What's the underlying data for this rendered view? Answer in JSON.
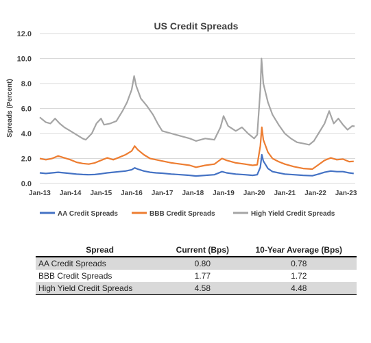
{
  "chart_data": {
    "type": "line",
    "title": "US Credit Spreads",
    "ylabel": "Spreads (Percent)",
    "xlabel": "",
    "ylim": [
      0,
      12
    ],
    "yticks": [
      "0.0",
      "2.0",
      "4.0",
      "6.0",
      "8.0",
      "10.0",
      "12.0"
    ],
    "xlim": [
      2013.0,
      2023.3
    ],
    "xticks": [
      "Jan-13",
      "Jan-14",
      "Jan-15",
      "Jan-16",
      "Jan-17",
      "Jan-18",
      "Jan-19",
      "Jan-20",
      "Jan-21",
      "Jan-22",
      "Jan-23"
    ],
    "grid": "horizontal",
    "legend_position": "bottom",
    "series": [
      {
        "name": "AA Credit Spreads",
        "color": "#4472c4",
        "points": [
          [
            2013.0,
            0.85
          ],
          [
            2013.2,
            0.8
          ],
          [
            2013.4,
            0.85
          ],
          [
            2013.6,
            0.9
          ],
          [
            2013.8,
            0.85
          ],
          [
            2014.0,
            0.8
          ],
          [
            2014.2,
            0.75
          ],
          [
            2014.4,
            0.72
          ],
          [
            2014.6,
            0.7
          ],
          [
            2014.8,
            0.72
          ],
          [
            2015.0,
            0.78
          ],
          [
            2015.2,
            0.85
          ],
          [
            2015.4,
            0.9
          ],
          [
            2015.6,
            0.95
          ],
          [
            2015.8,
            1.0
          ],
          [
            2016.0,
            1.1
          ],
          [
            2016.1,
            1.25
          ],
          [
            2016.2,
            1.15
          ],
          [
            2016.4,
            1.0
          ],
          [
            2016.6,
            0.9
          ],
          [
            2016.8,
            0.85
          ],
          [
            2017.0,
            0.82
          ],
          [
            2017.3,
            0.75
          ],
          [
            2017.6,
            0.7
          ],
          [
            2017.9,
            0.65
          ],
          [
            2018.1,
            0.6
          ],
          [
            2018.4,
            0.65
          ],
          [
            2018.7,
            0.7
          ],
          [
            2018.95,
            0.95
          ],
          [
            2019.1,
            0.85
          ],
          [
            2019.4,
            0.75
          ],
          [
            2019.7,
            0.7
          ],
          [
            2019.95,
            0.65
          ],
          [
            2020.1,
            0.7
          ],
          [
            2020.2,
            1.3
          ],
          [
            2020.25,
            2.3
          ],
          [
            2020.3,
            1.8
          ],
          [
            2020.45,
            1.2
          ],
          [
            2020.6,
            0.95
          ],
          [
            2020.8,
            0.85
          ],
          [
            2021.0,
            0.75
          ],
          [
            2021.3,
            0.7
          ],
          [
            2021.6,
            0.65
          ],
          [
            2021.9,
            0.62
          ],
          [
            2022.1,
            0.75
          ],
          [
            2022.3,
            0.9
          ],
          [
            2022.5,
            1.0
          ],
          [
            2022.7,
            0.95
          ],
          [
            2022.9,
            0.95
          ],
          [
            2023.1,
            0.85
          ],
          [
            2023.25,
            0.8
          ]
        ]
      },
      {
        "name": "BBB Credit Spreads",
        "color": "#ed7d31",
        "points": [
          [
            2013.0,
            2.0
          ],
          [
            2013.2,
            1.9
          ],
          [
            2013.4,
            2.0
          ],
          [
            2013.6,
            2.2
          ],
          [
            2013.8,
            2.05
          ],
          [
            2014.0,
            1.9
          ],
          [
            2014.2,
            1.7
          ],
          [
            2014.4,
            1.6
          ],
          [
            2014.6,
            1.55
          ],
          [
            2014.8,
            1.65
          ],
          [
            2015.0,
            1.85
          ],
          [
            2015.2,
            2.05
          ],
          [
            2015.4,
            1.9
          ],
          [
            2015.6,
            2.1
          ],
          [
            2015.8,
            2.3
          ],
          [
            2016.0,
            2.6
          ],
          [
            2016.1,
            3.0
          ],
          [
            2016.2,
            2.7
          ],
          [
            2016.4,
            2.3
          ],
          [
            2016.6,
            2.0
          ],
          [
            2016.8,
            1.9
          ],
          [
            2017.0,
            1.8
          ],
          [
            2017.3,
            1.65
          ],
          [
            2017.6,
            1.55
          ],
          [
            2017.9,
            1.45
          ],
          [
            2018.1,
            1.3
          ],
          [
            2018.4,
            1.45
          ],
          [
            2018.7,
            1.55
          ],
          [
            2018.95,
            2.0
          ],
          [
            2019.1,
            1.85
          ],
          [
            2019.4,
            1.65
          ],
          [
            2019.7,
            1.55
          ],
          [
            2019.95,
            1.45
          ],
          [
            2020.1,
            1.5
          ],
          [
            2020.2,
            3.0
          ],
          [
            2020.25,
            4.5
          ],
          [
            2020.3,
            3.5
          ],
          [
            2020.45,
            2.5
          ],
          [
            2020.6,
            2.0
          ],
          [
            2020.8,
            1.75
          ],
          [
            2021.0,
            1.55
          ],
          [
            2021.3,
            1.35
          ],
          [
            2021.6,
            1.2
          ],
          [
            2021.9,
            1.15
          ],
          [
            2022.1,
            1.5
          ],
          [
            2022.3,
            1.85
          ],
          [
            2022.5,
            2.05
          ],
          [
            2022.7,
            1.9
          ],
          [
            2022.9,
            1.95
          ],
          [
            2023.1,
            1.75
          ],
          [
            2023.25,
            1.77
          ]
        ]
      },
      {
        "name": "High Yield Credit Spreads",
        "color": "#a5a5a5",
        "points": [
          [
            2013.0,
            5.3
          ],
          [
            2013.2,
            4.9
          ],
          [
            2013.35,
            4.8
          ],
          [
            2013.5,
            5.2
          ],
          [
            2013.65,
            4.8
          ],
          [
            2013.8,
            4.5
          ],
          [
            2014.0,
            4.2
          ],
          [
            2014.2,
            3.9
          ],
          [
            2014.4,
            3.6
          ],
          [
            2014.5,
            3.5
          ],
          [
            2014.7,
            4.0
          ],
          [
            2014.85,
            4.8
          ],
          [
            2015.0,
            5.2
          ],
          [
            2015.1,
            4.7
          ],
          [
            2015.3,
            4.8
          ],
          [
            2015.5,
            5.0
          ],
          [
            2015.7,
            5.8
          ],
          [
            2015.85,
            6.5
          ],
          [
            2016.0,
            7.5
          ],
          [
            2016.08,
            8.6
          ],
          [
            2016.15,
            7.8
          ],
          [
            2016.3,
            6.8
          ],
          [
            2016.5,
            6.2
          ],
          [
            2016.7,
            5.5
          ],
          [
            2016.85,
            4.8
          ],
          [
            2017.0,
            4.2
          ],
          [
            2017.3,
            4.0
          ],
          [
            2017.6,
            3.8
          ],
          [
            2017.9,
            3.6
          ],
          [
            2018.1,
            3.4
          ],
          [
            2018.4,
            3.6
          ],
          [
            2018.7,
            3.5
          ],
          [
            2018.9,
            4.5
          ],
          [
            2019.0,
            5.4
          ],
          [
            2019.15,
            4.6
          ],
          [
            2019.4,
            4.2
          ],
          [
            2019.6,
            4.5
          ],
          [
            2019.8,
            4.0
          ],
          [
            2020.0,
            3.6
          ],
          [
            2020.1,
            3.9
          ],
          [
            2020.2,
            7.5
          ],
          [
            2020.24,
            10.0
          ],
          [
            2020.3,
            8.0
          ],
          [
            2020.45,
            6.5
          ],
          [
            2020.6,
            5.5
          ],
          [
            2020.8,
            4.7
          ],
          [
            2021.0,
            4.0
          ],
          [
            2021.2,
            3.6
          ],
          [
            2021.4,
            3.3
          ],
          [
            2021.6,
            3.2
          ],
          [
            2021.8,
            3.1
          ],
          [
            2021.95,
            3.4
          ],
          [
            2022.1,
            4.0
          ],
          [
            2022.3,
            4.8
          ],
          [
            2022.45,
            5.8
          ],
          [
            2022.6,
            4.8
          ],
          [
            2022.75,
            5.2
          ],
          [
            2022.9,
            4.7
          ],
          [
            2023.05,
            4.3
          ],
          [
            2023.2,
            4.6
          ],
          [
            2023.28,
            4.58
          ]
        ]
      }
    ]
  },
  "table": {
    "headers": [
      "Spread",
      "Current (Bps)",
      "10-Year Average (Bps)"
    ],
    "rows": [
      [
        "AA Credit Spreads",
        "0.80",
        "0.78"
      ],
      [
        "BBB Credit Spreads",
        "1.77",
        "1.72"
      ],
      [
        "High Yield Credit Spreads",
        "4.58",
        "4.48"
      ]
    ]
  }
}
